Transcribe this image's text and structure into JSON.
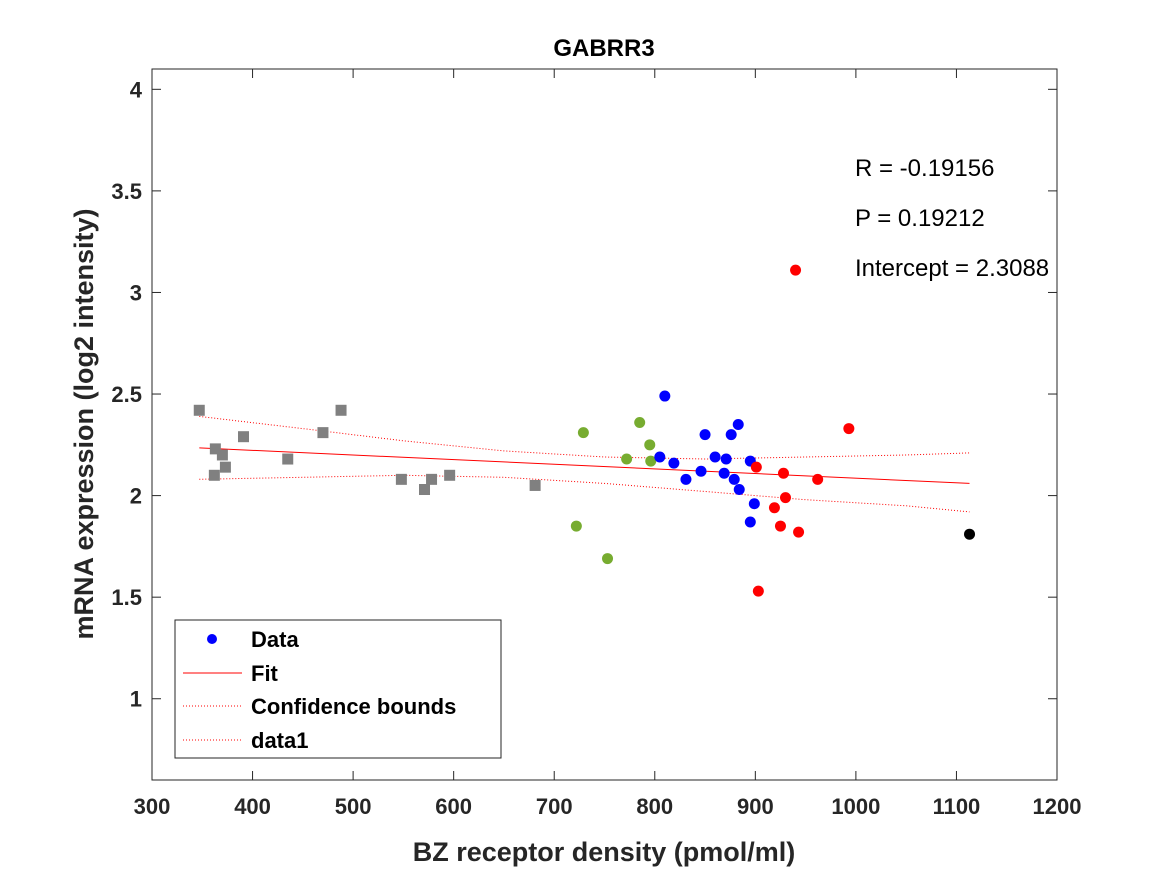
{
  "chart_data": {
    "type": "scatter",
    "title": "GABRR3",
    "xlabel": "BZ receptor density (pmol/ml)",
    "ylabel": "mRNA expression (log2 intensity)",
    "xlim": [
      300,
      1200
    ],
    "ylim": [
      0.6,
      4.1
    ],
    "xticks": [
      300,
      400,
      500,
      600,
      700,
      800,
      900,
      1000,
      1100,
      1200
    ],
    "yticks": [
      1,
      1.5,
      2,
      2.5,
      3,
      3.5,
      4
    ],
    "grid": false,
    "series": [
      {
        "name": "gray",
        "marker": "square",
        "color": "#808080",
        "points": [
          [
            347,
            2.42
          ],
          [
            363,
            2.23
          ],
          [
            362,
            2.1
          ],
          [
            370,
            2.2
          ],
          [
            373,
            2.14
          ],
          [
            391,
            2.29
          ],
          [
            435,
            2.18
          ],
          [
            470,
            2.31
          ],
          [
            488,
            2.42
          ],
          [
            548,
            2.08
          ],
          [
            571,
            2.03
          ],
          [
            578,
            2.08
          ],
          [
            596,
            2.1
          ],
          [
            681,
            2.05
          ]
        ]
      },
      {
        "name": "green",
        "marker": "circle",
        "color": "#77AC30",
        "points": [
          [
            722,
            1.85
          ],
          [
            729,
            2.31
          ],
          [
            753,
            1.69
          ],
          [
            772,
            2.18
          ],
          [
            785,
            2.36
          ],
          [
            795,
            2.25
          ],
          [
            796,
            2.17
          ]
        ]
      },
      {
        "name": "Data",
        "marker": "circle",
        "color": "#0000FF",
        "points": [
          [
            805,
            2.19
          ],
          [
            810,
            2.49
          ],
          [
            819,
            2.16
          ],
          [
            831,
            2.08
          ],
          [
            846,
            2.12
          ],
          [
            850,
            2.3
          ],
          [
            860,
            2.19
          ],
          [
            869,
            2.11
          ],
          [
            871,
            2.18
          ],
          [
            876,
            2.3
          ],
          [
            879,
            2.08
          ],
          [
            883,
            2.35
          ],
          [
            884,
            2.03
          ],
          [
            895,
            2.17
          ],
          [
            895,
            1.87
          ],
          [
            899,
            1.96
          ]
        ]
      },
      {
        "name": "red",
        "marker": "circle",
        "color": "#FF0000",
        "points": [
          [
            901,
            2.14
          ],
          [
            903,
            1.53
          ],
          [
            919,
            1.94
          ],
          [
            925,
            1.85
          ],
          [
            928,
            2.11
          ],
          [
            930,
            1.99
          ],
          [
            940,
            3.11
          ],
          [
            943,
            1.82
          ],
          [
            962,
            2.08
          ],
          [
            993,
            2.33
          ]
        ]
      },
      {
        "name": "black",
        "marker": "circle",
        "color": "#000000",
        "points": [
          [
            1113,
            1.81
          ]
        ]
      }
    ],
    "fit": {
      "name": "Fit",
      "color": "#FF0000",
      "points": [
        [
          347,
          2.235
        ],
        [
          1113,
          2.06
        ]
      ]
    },
    "confidence_upper": {
      "color": "#FF0000",
      "points": [
        [
          347,
          2.39
        ],
        [
          450,
          2.33
        ],
        [
          550,
          2.27
        ],
        [
          650,
          2.22
        ],
        [
          750,
          2.19
        ],
        [
          850,
          2.18
        ],
        [
          950,
          2.19
        ],
        [
          1050,
          2.2
        ],
        [
          1113,
          2.21
        ]
      ]
    },
    "confidence_lower": {
      "color": "#FF0000",
      "points": [
        [
          347,
          2.08
        ],
        [
          450,
          2.09
        ],
        [
          550,
          2.1
        ],
        [
          650,
          2.09
        ],
        [
          750,
          2.06
        ],
        [
          850,
          2.02
        ],
        [
          950,
          1.98
        ],
        [
          1050,
          1.95
        ],
        [
          1113,
          1.92
        ]
      ]
    },
    "annotations": [
      "R = -0.19156",
      "P = 0.19212",
      "Intercept = 2.3088"
    ],
    "legend": {
      "position": "bottom-left",
      "entries": [
        {
          "label": "Data",
          "style": "marker",
          "color": "#0000FF"
        },
        {
          "label": "Fit",
          "style": "solid",
          "color": "#FF0000"
        },
        {
          "label": "Confidence bounds",
          "style": "dotted",
          "color": "#FF0000"
        },
        {
          "label": "data1",
          "style": "dotted",
          "color": "#FF0000"
        }
      ]
    }
  }
}
